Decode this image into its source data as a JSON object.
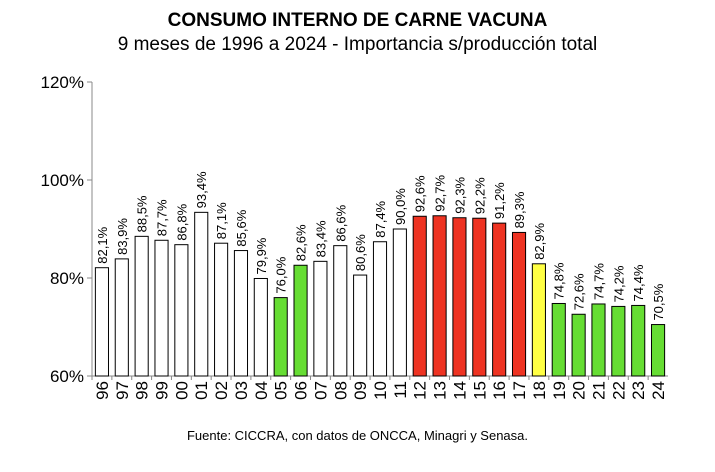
{
  "chart_data": {
    "type": "bar",
    "title": "CONSUMO INTERNO DE CARNE VACUNA",
    "subtitle": "9 meses de 1996 a 2024 - Importancia s/producción total",
    "source": "Fuente: CICCRA, con datos de ONCCA, Minagri y Senasa.",
    "y_ticks": [
      "60%",
      "80%",
      "100%",
      "120%"
    ],
    "ylim": [
      60,
      120
    ],
    "grid": false,
    "categories": [
      "96",
      "97",
      "98",
      "99",
      "00",
      "01",
      "02",
      "03",
      "04",
      "05",
      "06",
      "07",
      "08",
      "09",
      "10",
      "11",
      "12",
      "13",
      "14",
      "15",
      "16",
      "17",
      "18",
      "19",
      "20",
      "21",
      "22",
      "23",
      "24"
    ],
    "values": [
      82.1,
      83.9,
      88.5,
      87.7,
      86.8,
      93.4,
      87.1,
      85.6,
      79.9,
      76.0,
      82.6,
      83.4,
      86.6,
      80.6,
      87.4,
      90.0,
      92.6,
      92.7,
      92.3,
      92.2,
      91.2,
      89.3,
      82.9,
      74.8,
      72.6,
      74.7,
      74.2,
      74.4,
      70.5
    ],
    "data_labels": [
      "82,1%",
      "83,9%",
      "88,5%",
      "87,7%",
      "86,8%",
      "93,4%",
      "87,1%",
      "85,6%",
      "79,9%",
      "76,0%",
      "82,6%",
      "83,4%",
      "86,6%",
      "80,6%",
      "87,4%",
      "90,0%",
      "92,6%",
      "92,7%",
      "92,3%",
      "92,2%",
      "91,2%",
      "89,3%",
      "82,9%",
      "74,8%",
      "72,6%",
      "74,7%",
      "74,2%",
      "74,4%",
      "70,5%"
    ],
    "bar_colors": [
      "#ffffff",
      "#ffffff",
      "#ffffff",
      "#ffffff",
      "#ffffff",
      "#ffffff",
      "#ffffff",
      "#ffffff",
      "#ffffff",
      "#66dd33",
      "#66dd33",
      "#ffffff",
      "#ffffff",
      "#ffffff",
      "#ffffff",
      "#ffffff",
      "#ee3322",
      "#ee3322",
      "#ee3322",
      "#ee3322",
      "#ee3322",
      "#ee3322",
      "#ffff44",
      "#66dd33",
      "#66dd33",
      "#66dd33",
      "#66dd33",
      "#66dd33",
      "#66dd33"
    ],
    "bar_outline": "#000000"
  }
}
